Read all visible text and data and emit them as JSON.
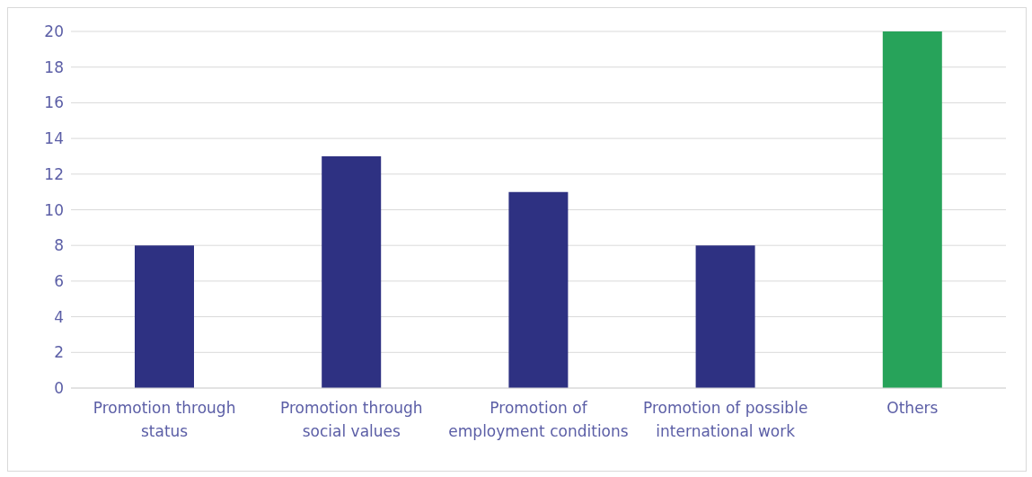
{
  "chart_data": {
    "type": "bar",
    "categories": [
      "Promotion through status",
      "Promotion through social values",
      "Promotion of employment conditions",
      "Promotion of possible international work",
      "Others"
    ],
    "values": [
      8,
      13,
      11,
      8,
      20
    ],
    "colors": [
      "#2e3182",
      "#2e3182",
      "#2e3182",
      "#2e3182",
      "#27a35a"
    ],
    "ylim": [
      0,
      20
    ],
    "yticks": [
      0,
      2,
      4,
      6,
      8,
      10,
      12,
      14,
      16,
      18,
      20
    ],
    "grid": "y"
  }
}
